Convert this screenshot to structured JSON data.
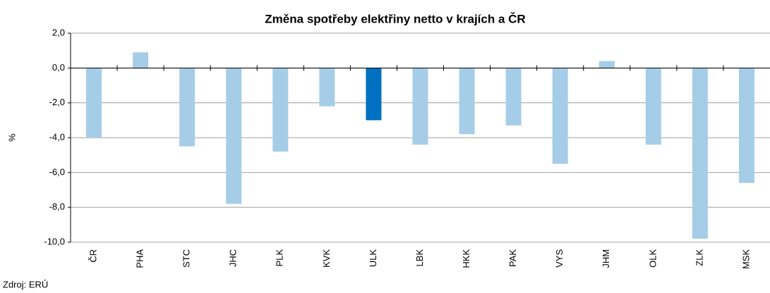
{
  "chart_data": {
    "type": "bar",
    "title": "Změna spotřeby  elektřiny netto v krajích a ČR",
    "y_label": "%",
    "source": "Zdroj: ERÚ",
    "categories": [
      "ČR",
      "PHA",
      "STC",
      "JHC",
      "PLK",
      "KVK",
      "ULK",
      "LBK",
      "HKK",
      "PAK",
      "VYS",
      "JHM",
      "OLK",
      "ZLK",
      "MSK"
    ],
    "values": [
      -4.0,
      0.9,
      -4.5,
      -7.8,
      -4.8,
      -2.2,
      -3.0,
      -4.4,
      -3.8,
      -3.3,
      -5.5,
      0.4,
      -4.4,
      -9.8,
      -6.6
    ],
    "colors": [
      "#a6cde8",
      "#a6cde8",
      "#a6cde8",
      "#a6cde8",
      "#a6cde8",
      "#a6cde8",
      "#0070c0",
      "#a6cde8",
      "#a6cde8",
      "#a6cde8",
      "#a6cde8",
      "#a6cde8",
      "#a6cde8",
      "#a6cde8",
      "#a6cde8"
    ],
    "ylim": [
      -10,
      2
    ],
    "yticks": [
      {
        "value": 2,
        "label": "2,0"
      },
      {
        "value": 0,
        "label": "0,0"
      },
      {
        "value": -2,
        "label": "-2,0"
      },
      {
        "value": -4,
        "label": "-4,0"
      },
      {
        "value": -6,
        "label": "-6,0"
      },
      {
        "value": -8,
        "label": "-8,0"
      },
      {
        "value": -10,
        "label": "-10,0"
      }
    ],
    "grid": true
  }
}
